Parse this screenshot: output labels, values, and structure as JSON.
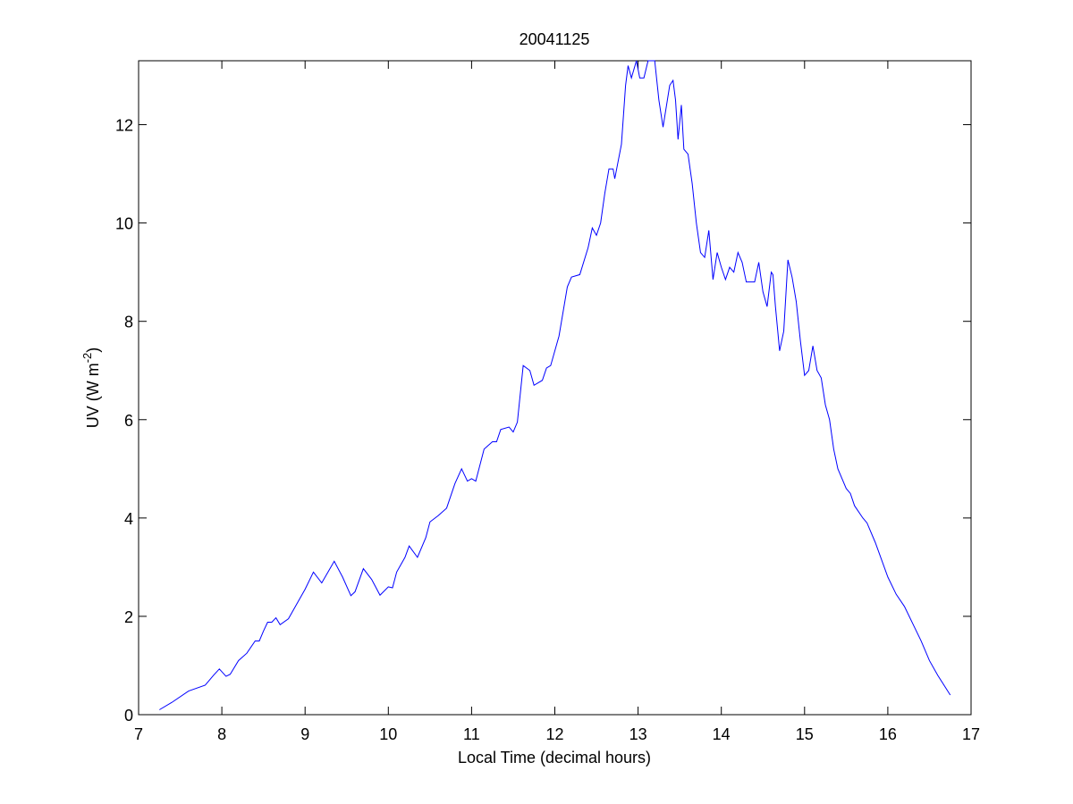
{
  "chart_data": {
    "type": "line",
    "title": "20041125",
    "xlabel": "Local Time (decimal hours)",
    "ylabel": [
      "UV (W m",
      "-2",
      ")"
    ],
    "xlim": [
      7,
      17
    ],
    "ylim": [
      0,
      13.3
    ],
    "xticks": [
      7,
      8,
      9,
      10,
      11,
      12,
      13,
      14,
      15,
      16,
      17
    ],
    "yticks": [
      0,
      2,
      4,
      6,
      8,
      10,
      12
    ],
    "grid": false,
    "series": [
      {
        "color": "#0000ff",
        "x": [
          7.25,
          7.4,
          7.6,
          7.8,
          7.9,
          7.97,
          8.05,
          8.1,
          8.2,
          8.3,
          8.4,
          8.45,
          8.5,
          8.55,
          8.6,
          8.65,
          8.7,
          8.8,
          8.9,
          9.0,
          9.1,
          9.2,
          9.35,
          9.45,
          9.55,
          9.6,
          9.7,
          9.8,
          9.9,
          10.0,
          10.05,
          10.1,
          10.2,
          10.25,
          10.35,
          10.45,
          10.5,
          10.6,
          10.7,
          10.8,
          10.88,
          10.95,
          11.0,
          11.05,
          11.15,
          11.25,
          11.3,
          11.35,
          11.45,
          11.5,
          11.55,
          11.62,
          11.7,
          11.75,
          11.85,
          11.9,
          11.95,
          12.05,
          12.15,
          12.2,
          12.3,
          12.4,
          12.45,
          12.5,
          12.55,
          12.6,
          12.65,
          12.7,
          12.72,
          12.8,
          12.85,
          12.88,
          12.92,
          12.98,
          13.02,
          13.07,
          13.12,
          13.2,
          13.25,
          13.3,
          13.38,
          13.42,
          13.45,
          13.48,
          13.52,
          13.55,
          13.6,
          13.65,
          13.7,
          13.75,
          13.8,
          13.85,
          13.9,
          13.95,
          14.0,
          14.05,
          14.1,
          14.15,
          14.2,
          14.25,
          14.3,
          14.4,
          14.45,
          14.5,
          14.55,
          14.6,
          14.62,
          14.65,
          14.7,
          14.75,
          14.8,
          14.85,
          14.9,
          14.95,
          15.0,
          15.05,
          15.1,
          15.15,
          15.2,
          15.25,
          15.3,
          15.35,
          15.4,
          15.45,
          15.5,
          15.55,
          15.6,
          15.7,
          15.75,
          15.85,
          16.0,
          16.1,
          16.2,
          16.3,
          16.4,
          16.5,
          16.6,
          16.75
        ],
        "values": [
          0.1,
          0.25,
          0.48,
          0.6,
          0.8,
          0.93,
          0.78,
          0.82,
          1.1,
          1.25,
          1.5,
          1.5,
          1.7,
          1.88,
          1.88,
          1.97,
          1.83,
          1.95,
          2.25,
          2.55,
          2.9,
          2.68,
          3.12,
          2.8,
          2.42,
          2.5,
          2.97,
          2.75,
          2.43,
          2.6,
          2.58,
          2.9,
          3.2,
          3.43,
          3.2,
          3.6,
          3.92,
          4.05,
          4.2,
          4.7,
          5.0,
          4.75,
          4.8,
          4.75,
          5.4,
          5.55,
          5.55,
          5.8,
          5.85,
          5.75,
          5.95,
          7.1,
          7.0,
          6.7,
          6.8,
          7.05,
          7.1,
          7.7,
          8.7,
          8.9,
          8.95,
          9.5,
          9.9,
          9.75,
          10.0,
          10.6,
          11.1,
          11.1,
          10.9,
          11.6,
          12.8,
          13.2,
          12.95,
          13.3,
          12.95,
          12.95,
          13.3,
          13.3,
          12.5,
          11.95,
          12.8,
          12.9,
          12.5,
          11.7,
          12.4,
          11.5,
          11.4,
          10.8,
          10.0,
          9.4,
          9.3,
          9.85,
          8.85,
          9.4,
          9.1,
          8.85,
          9.1,
          9.0,
          9.4,
          9.2,
          8.8,
          8.8,
          9.2,
          8.6,
          8.3,
          9.0,
          8.95,
          8.3,
          7.4,
          7.8,
          9.25,
          8.9,
          8.4,
          7.6,
          6.9,
          7.0,
          7.5,
          7.0,
          6.85,
          6.3,
          6.0,
          5.4,
          5.0,
          4.8,
          4.6,
          4.5,
          4.25,
          4.0,
          3.9,
          3.5,
          2.8,
          2.45,
          2.2,
          1.85,
          1.5,
          1.1,
          0.8,
          0.4
        ]
      }
    ]
  }
}
